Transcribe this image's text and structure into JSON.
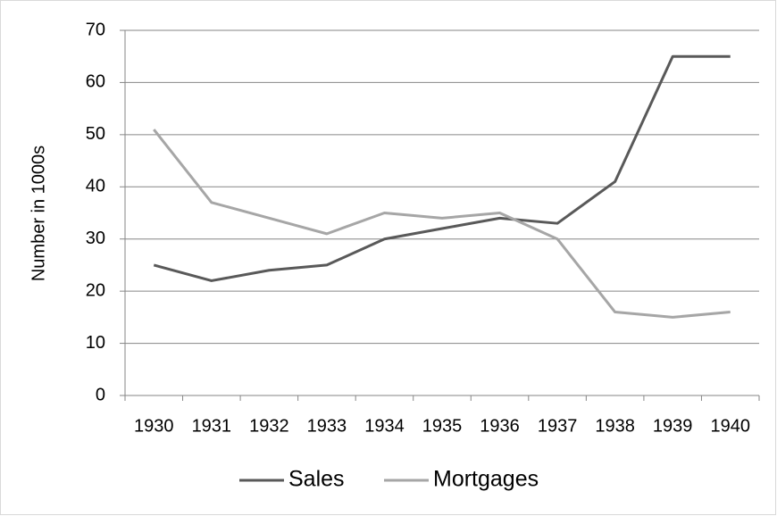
{
  "chart_data": {
    "type": "line",
    "y_label": "Number in 1000s",
    "categories": [
      "1930",
      "1931",
      "1932",
      "1933",
      "1934",
      "1935",
      "1936",
      "1937",
      "1938",
      "1939",
      "1940"
    ],
    "series": [
      {
        "name": "Sales",
        "color": "#595959",
        "values": [
          25,
          22,
          24,
          25,
          30,
          32,
          34,
          33,
          41,
          65,
          65
        ]
      },
      {
        "name": "Mortgages",
        "color": "#a6a6a6",
        "values": [
          51,
          37,
          34,
          31,
          35,
          34,
          35,
          30,
          16,
          15,
          16
        ]
      }
    ],
    "ylim": [
      0,
      70
    ],
    "yticks": [
      0,
      10,
      20,
      30,
      40,
      50,
      60,
      70
    ],
    "grid": true,
    "legend": "bottom"
  }
}
